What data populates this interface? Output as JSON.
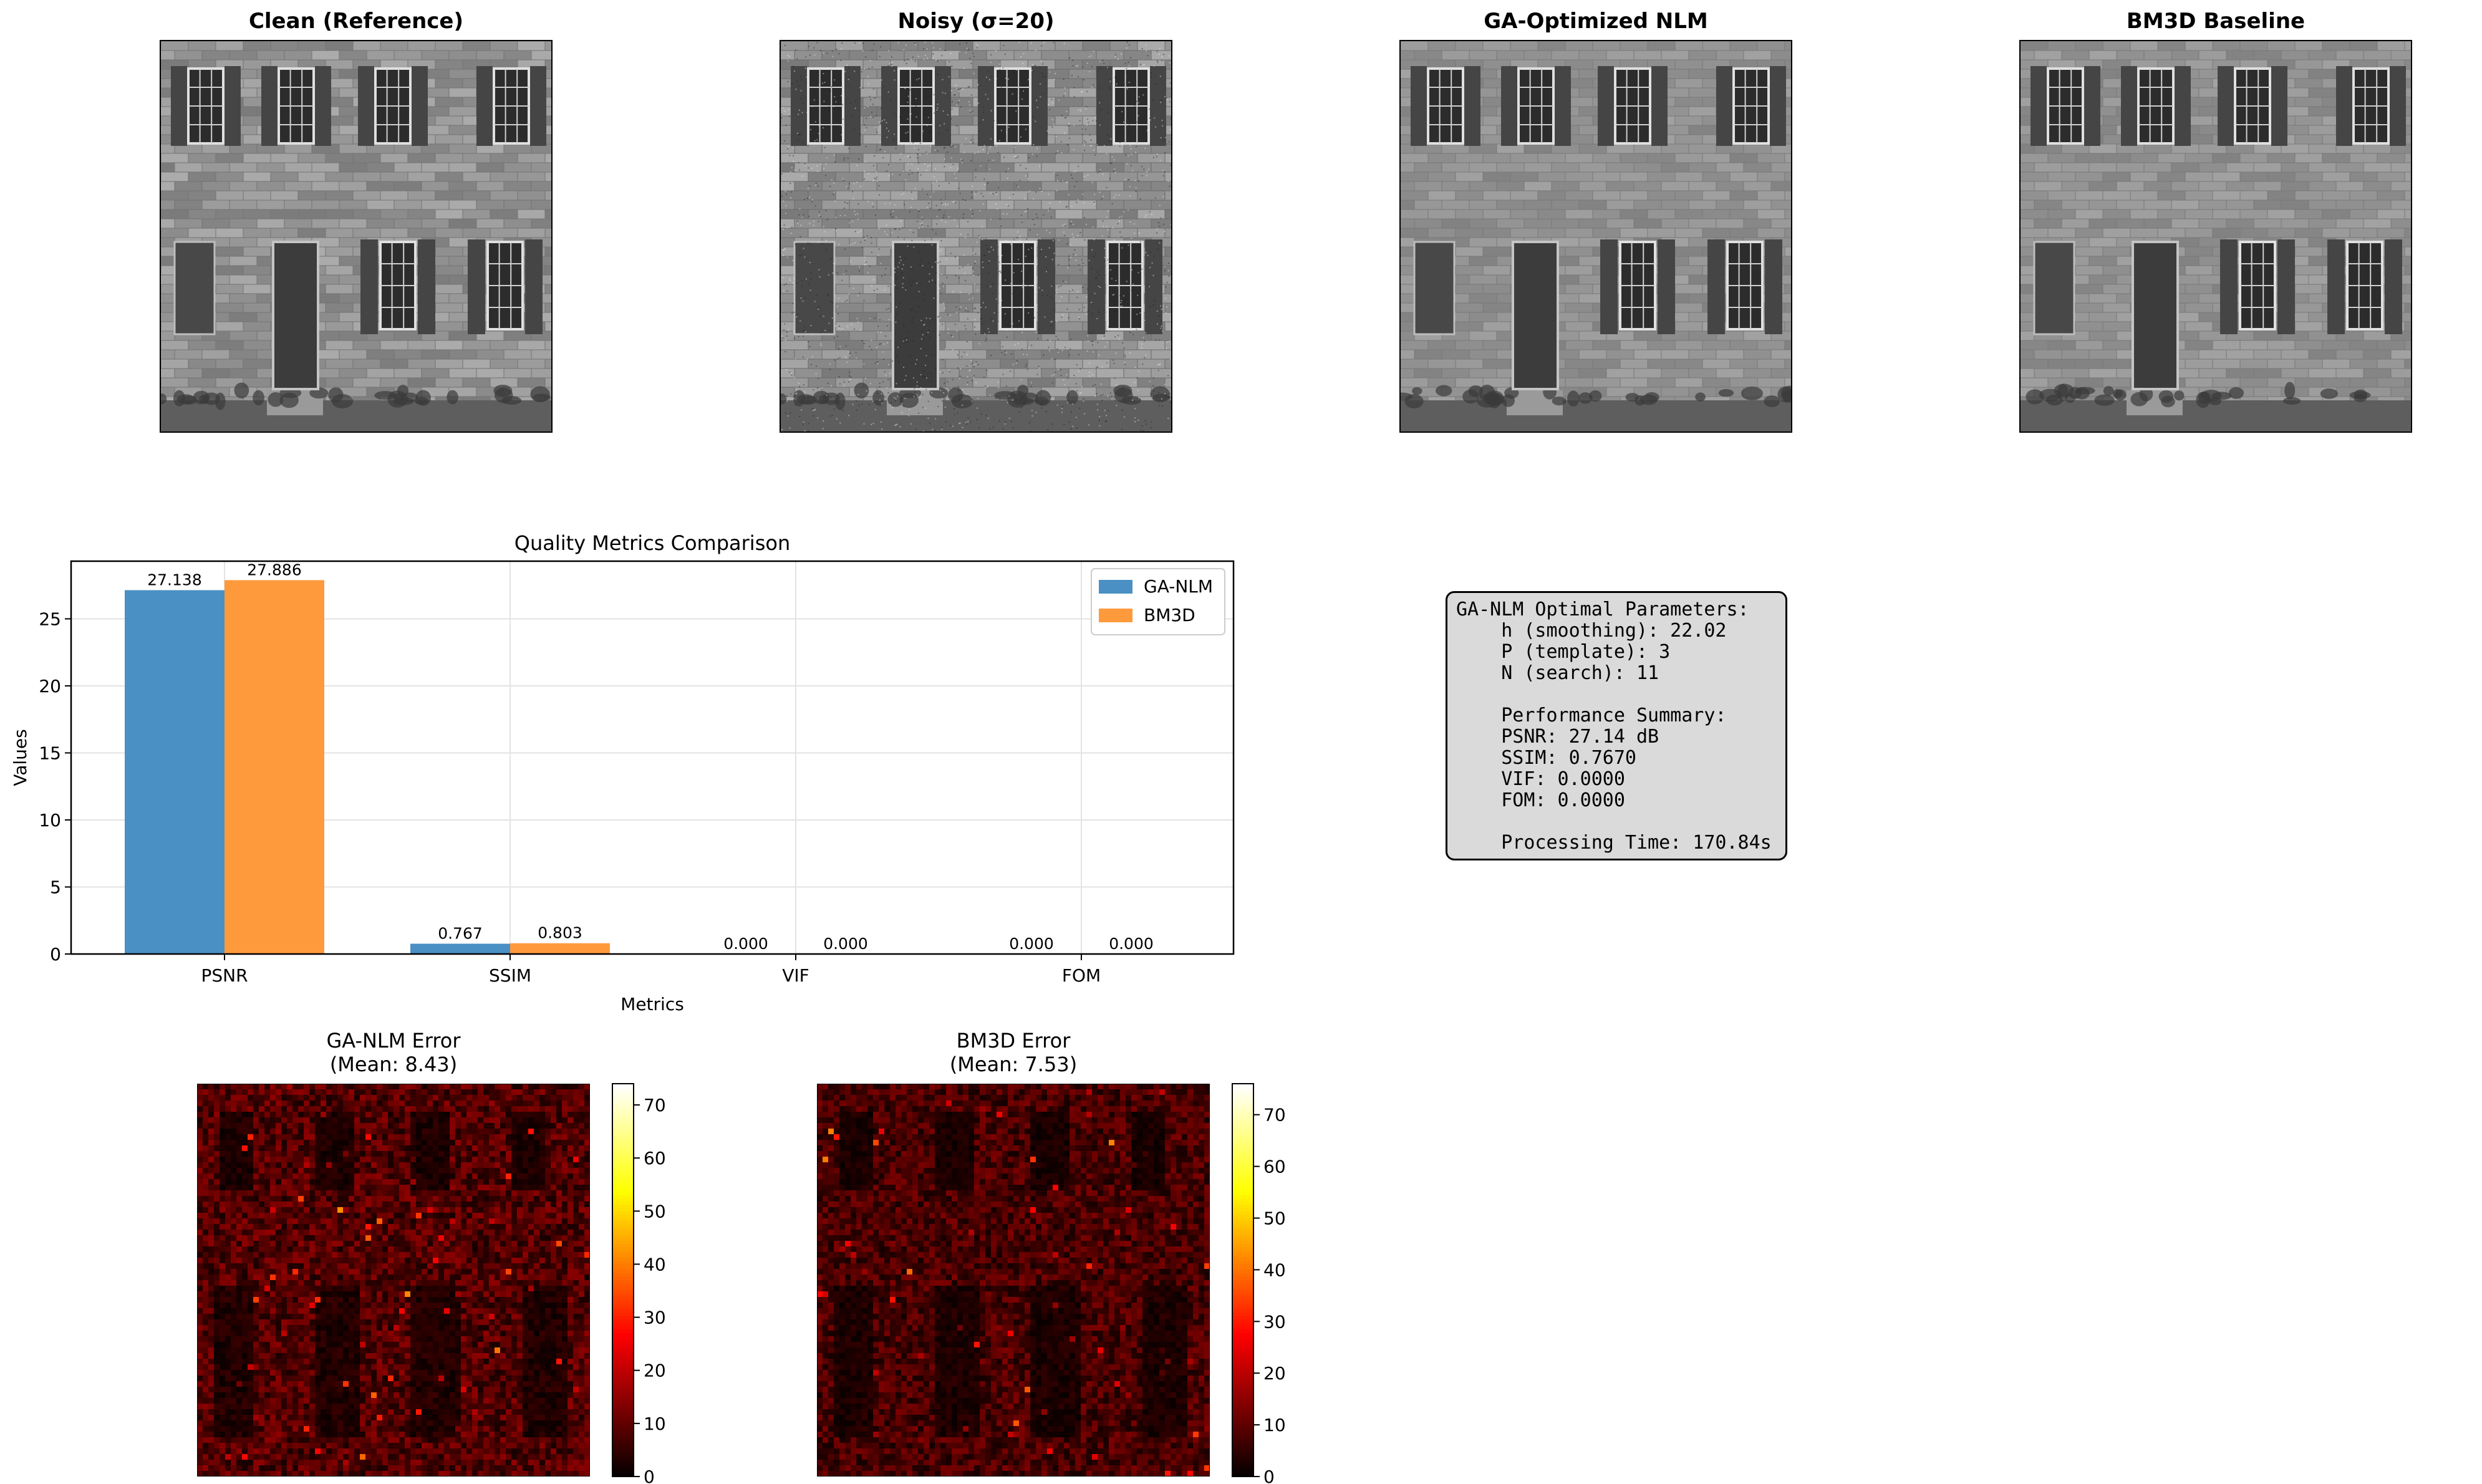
{
  "image_panels": [
    {
      "title": "Clean (Reference)",
      "variant": "clean"
    },
    {
      "title": "Noisy (σ=20)",
      "variant": "noisy"
    },
    {
      "title": "GA-Optimized NLM",
      "variant": "smooth"
    },
    {
      "title": "BM3D Baseline",
      "variant": "smooth2"
    }
  ],
  "chart_data": [
    {
      "type": "bar",
      "title": "Quality Metrics Comparison",
      "xlabel": "Metrics",
      "ylabel": "Values",
      "categories": [
        "PSNR",
        "SSIM",
        "VIF",
        "FOM"
      ],
      "series": [
        {
          "name": "GA-NLM",
          "color": "#4a90c4",
          "values": [
            27.138,
            0.767,
            0.0,
            0.0
          ],
          "labels": [
            "27.138",
            "0.767",
            "0.000",
            "0.000"
          ]
        },
        {
          "name": "BM3D",
          "color": "#ff9a3c",
          "values": [
            27.886,
            0.803,
            0.0,
            0.0
          ],
          "labels": [
            "27.886",
            "0.803",
            "0.000",
            "0.000"
          ]
        }
      ],
      "ylim": [
        0,
        29.3
      ],
      "yticks": [
        0,
        5,
        10,
        15,
        20,
        25
      ],
      "grid": true,
      "legend": "top-right"
    },
    {
      "type": "heatmap",
      "title": "GA-NLM Error",
      "subtitle": "(Mean: 8.43)",
      "mean": 8.43,
      "colorbar_range": [
        0,
        74
      ],
      "colorbar_ticks": [
        0,
        10,
        20,
        30,
        40,
        50,
        60,
        70
      ],
      "colormap": "hot"
    },
    {
      "type": "heatmap",
      "title": "BM3D Error",
      "subtitle": "(Mean: 7.53)",
      "mean": 7.53,
      "colorbar_range": [
        0,
        76
      ],
      "colorbar_ticks": [
        0,
        10,
        20,
        30,
        40,
        50,
        60,
        70
      ],
      "colormap": "hot"
    }
  ],
  "info_box": {
    "lines": [
      "GA-NLM Optimal Parameters:",
      "    h (smoothing): 22.02",
      "    P (template): 3",
      "    N (search): 11",
      "",
      "    Performance Summary:",
      "    PSNR: 27.14 dB",
      "    SSIM: 0.7670",
      "    VIF: 0.0000",
      "    FOM: 0.0000",
      "",
      "    Processing Time: 170.84s"
    ]
  }
}
